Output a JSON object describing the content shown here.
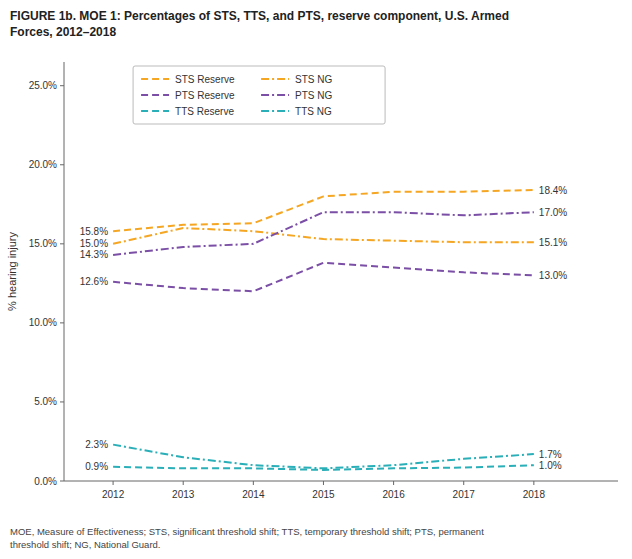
{
  "chart_data": {
    "type": "line",
    "title": "FIGURE 1b. MOE 1: Percentages of STS, TTS, and PTS, reserve component, U.S. Armed\nForces, 2012–2018",
    "footnote": "MOE, Measure of Effectiveness; STS, significant threshold shift; TTS, temporary threshold shift; PTS, permanent\nthreshold shift; NG, National Guard.",
    "y_label": "% hearing injury",
    "x": [
      2012,
      2013,
      2014,
      2015,
      2016,
      2017,
      2018
    ],
    "xlim": [
      2011.3,
      2019.2
    ],
    "xticks": [
      2012,
      2013,
      2014,
      2015,
      2016,
      2017,
      2018
    ],
    "ylim": [
      0,
      26.5
    ],
    "yticks": [
      {
        "value": 0,
        "label": "0.0%"
      },
      {
        "value": 5,
        "label": "5.0%"
      },
      {
        "value": 10,
        "label": "10.0%"
      },
      {
        "value": 15,
        "label": "15.0%"
      },
      {
        "value": 20,
        "label": "20.0%"
      },
      {
        "value": 25,
        "label": "25.0%"
      }
    ],
    "grid": false,
    "legend": "upper left",
    "series": [
      {
        "name": "STS Reserve",
        "color": "#F5A623",
        "line_style": "dashed",
        "values": [
          15.8,
          16.2,
          16.3,
          18.0,
          18.3,
          18.3,
          18.4
        ]
      },
      {
        "name": "PTS Reserve",
        "color": "#7B4FA6",
        "line_style": "dashed",
        "values": [
          12.6,
          12.2,
          12.0,
          13.8,
          13.5,
          13.2,
          13.0
        ]
      },
      {
        "name": "TTS Reserve",
        "color": "#2AAFB8",
        "line_style": "dashed",
        "values": [
          0.9,
          0.8,
          0.8,
          0.7,
          0.8,
          0.85,
          1.0
        ]
      },
      {
        "name": "STS NG",
        "color": "#F5A623",
        "line_style": "dashdot",
        "values": [
          15.0,
          16.0,
          15.8,
          15.3,
          15.2,
          15.1,
          15.1
        ]
      },
      {
        "name": "PTS NG",
        "color": "#7B4FA6",
        "line_style": "dashdot",
        "values": [
          14.3,
          14.8,
          15.0,
          17.0,
          17.0,
          16.8,
          17.0
        ]
      },
      {
        "name": "TTS NG",
        "color": "#2AAFB8",
        "line_style": "dashdot",
        "values": [
          2.3,
          1.5,
          1.0,
          0.8,
          1.0,
          1.4,
          1.7
        ]
      }
    ],
    "annotations": [
      {
        "text": "15.8%",
        "x": 2012,
        "y": 15.8
      },
      {
        "text": "15.0%",
        "x": 2012,
        "y": 15.0
      },
      {
        "text": "14.3%",
        "x": 2012,
        "y": 14.3
      },
      {
        "text": "12.6%",
        "x": 2012,
        "y": 12.6
      },
      {
        "text": "2.3%",
        "x": 2012,
        "y": 2.3
      },
      {
        "text": "0.9%",
        "x": 2012,
        "y": 0.9
      },
      {
        "text": "18.4%",
        "x": 2018,
        "y": 18.4
      },
      {
        "text": "17.0%",
        "x": 2018,
        "y": 17.0
      },
      {
        "text": "15.1%",
        "x": 2018,
        "y": 15.1
      },
      {
        "text": "13.0%",
        "x": 2018,
        "y": 13.0
      },
      {
        "text": "1.7%",
        "x": 2018,
        "y": 1.7
      },
      {
        "text": "1.0%",
        "x": 2018,
        "y": 1.0
      }
    ]
  }
}
